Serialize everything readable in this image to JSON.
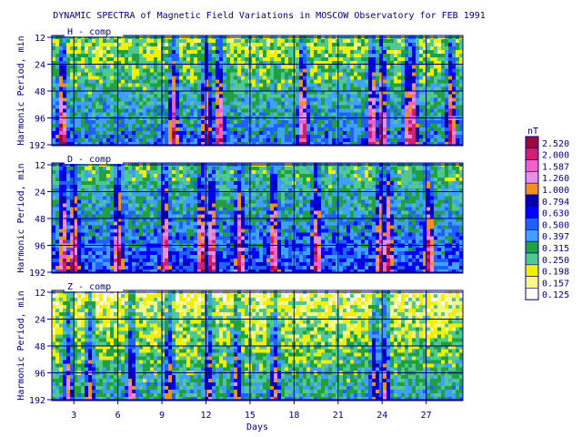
{
  "chart_data": {
    "type": "heatmap",
    "title": "DYNAMIC SPECTRA of Magnetic Field Variations in MOSCOW Observatory for FEB 1991",
    "xlabel": "Days",
    "ylabel": "Harmonic Period, min",
    "x_range": [
      1.5,
      29.5
    ],
    "x_ticks": [
      "3",
      "6",
      "9",
      "12",
      "15",
      "18",
      "21",
      "24",
      "27"
    ],
    "y_ticks": [
      "12",
      "24",
      "48",
      "96",
      "192"
    ],
    "y_scale": "log2",
    "panels": [
      {
        "label": "H - comp",
        "active_days": [
          2.2,
          9.8,
          12.0,
          12.9,
          18.6,
          23.3,
          24.0,
          25.8,
          26.1,
          28.7
        ],
        "base_level": 2,
        "peak_level": 9
      },
      {
        "label": "D - comp",
        "active_days": [
          2.3,
          3.0,
          6.0,
          9.2,
          11.7,
          12.4,
          14.3,
          16.6,
          19.5,
          23.9,
          24.4,
          27.2
        ],
        "base_level": 3,
        "peak_level": 9
      },
      {
        "label": "Z - comp",
        "active_days": [
          2.6,
          4.1,
          6.9,
          9.5,
          12.2,
          14.1,
          16.7,
          23.5,
          24.2
        ],
        "base_level": 1,
        "peak_level": 6
      }
    ],
    "colorbar": {
      "unit": "nT",
      "levels": [
        "2.520",
        "2.000",
        "1.587",
        "1.260",
        "1.000",
        "0.794",
        "0.630",
        "0.500",
        "0.397",
        "0.315",
        "0.250",
        "0.198",
        "0.157",
        "0.125"
      ],
      "colors": [
        "#9c0a3c",
        "#d02070",
        "#f060c8",
        "#e890e0",
        "#f09020",
        "#0000b0",
        "#0000ff",
        "#2060ff",
        "#40a0ff",
        "#20a040",
        "#50c890",
        "#f0f000",
        "#f8f888",
        "#ffffff"
      ]
    },
    "grid": true
  }
}
